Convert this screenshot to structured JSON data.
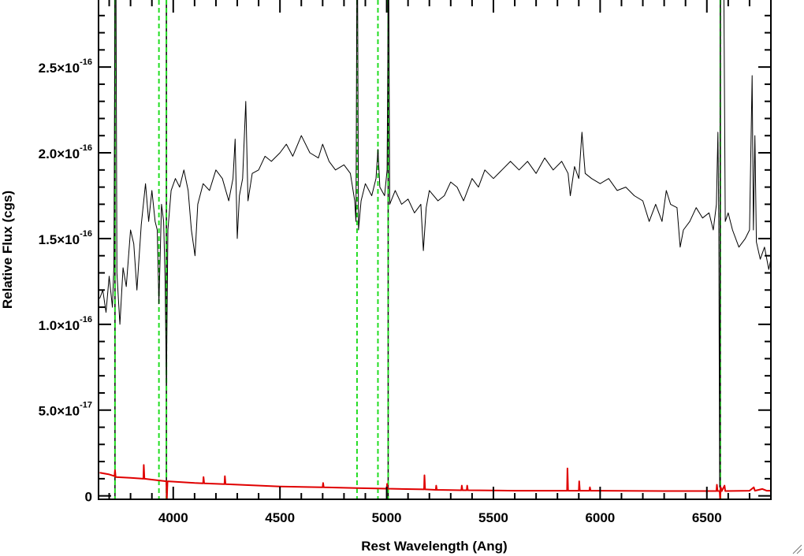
{
  "chart_data": {
    "type": "line",
    "xlabel": "Rest Wavelength (Ang)",
    "ylabel": "Relative Flux (cgs)",
    "xlim": [
      3650,
      6800
    ],
    "ylim": [
      -2e-18,
      2.9e-16
    ],
    "xticks": [
      {
        "value": 4000,
        "label": "4000"
      },
      {
        "value": 4500,
        "label": "4500"
      },
      {
        "value": 5000,
        "label": "5000"
      },
      {
        "value": 5500,
        "label": "5500"
      },
      {
        "value": 6000,
        "label": "6000"
      },
      {
        "value": 6500,
        "label": "6500"
      }
    ],
    "yticks": [
      {
        "value": 0,
        "mant": "0",
        "exp": ""
      },
      {
        "value": 5e-17,
        "mant": "5.0×10",
        "exp": "-17"
      },
      {
        "value": 1e-16,
        "mant": "1.0×10",
        "exp": "-16"
      },
      {
        "value": 1.5e-16,
        "mant": "1.5×10",
        "exp": "-16"
      },
      {
        "value": 2e-16,
        "mant": "2.0×10",
        "exp": "-16"
      },
      {
        "value": 2.5e-16,
        "mant": "2.5×10",
        "exp": "-16"
      }
    ],
    "grid": false,
    "series": [
      {
        "color": "#000000",
        "points": [
          [
            3655,
            1.15e-16
          ],
          [
            3670,
            1.2e-16
          ],
          [
            3685,
            1.07e-16
          ],
          [
            3700,
            1.28e-16
          ],
          [
            3715,
            1.1e-16
          ],
          [
            3722,
            1.34e-16
          ],
          [
            3727,
            2.9e-16
          ],
          [
            3732,
            2.9e-16
          ],
          [
            3736,
            1.3e-16
          ],
          [
            3750,
            1e-16
          ],
          [
            3765,
            1.33e-16
          ],
          [
            3780,
            1.22e-16
          ],
          [
            3800,
            1.55e-16
          ],
          [
            3815,
            1.47e-16
          ],
          [
            3830,
            1.2e-16
          ],
          [
            3850,
            1.58e-16
          ],
          [
            3870,
            1.82e-16
          ],
          [
            3885,
            1.6e-16
          ],
          [
            3900,
            1.78e-16
          ],
          [
            3915,
            1.6e-16
          ],
          [
            3925,
            1.55e-16
          ],
          [
            3933,
            1.12e-16
          ],
          [
            3945,
            1.7e-16
          ],
          [
            3955,
            1.6e-16
          ],
          [
            3962,
            1.25e-16
          ],
          [
            3968,
            6.5e-17
          ],
          [
            3975,
            1.55e-16
          ],
          [
            3990,
            1.78e-16
          ],
          [
            4010,
            1.85e-16
          ],
          [
            4030,
            1.8e-16
          ],
          [
            4050,
            1.9e-16
          ],
          [
            4070,
            1.78e-16
          ],
          [
            4085,
            1.55e-16
          ],
          [
            4102,
            1.4e-16
          ],
          [
            4115,
            1.7e-16
          ],
          [
            4140,
            1.82e-16
          ],
          [
            4170,
            1.78e-16
          ],
          [
            4200,
            1.9e-16
          ],
          [
            4230,
            1.85e-16
          ],
          [
            4260,
            1.72e-16
          ],
          [
            4280,
            1.85e-16
          ],
          [
            4290,
            2.08e-16
          ],
          [
            4300,
            1.5e-16
          ],
          [
            4310,
            1.75e-16
          ],
          [
            4325,
            1.85e-16
          ],
          [
            4340,
            2.3e-16
          ],
          [
            4350,
            1.72e-16
          ],
          [
            4370,
            1.88e-16
          ],
          [
            4400,
            1.9e-16
          ],
          [
            4430,
            1.98e-16
          ],
          [
            4460,
            1.95e-16
          ],
          [
            4500,
            2e-16
          ],
          [
            4530,
            2.05e-16
          ],
          [
            4560,
            1.98e-16
          ],
          [
            4600,
            2.1e-16
          ],
          [
            4640,
            2e-16
          ],
          [
            4680,
            1.97e-16
          ],
          [
            4700,
            2.05e-16
          ],
          [
            4730,
            1.95e-16
          ],
          [
            4760,
            1.9e-16
          ],
          [
            4800,
            1.93e-16
          ],
          [
            4830,
            1.88e-16
          ],
          [
            4850,
            1.72e-16
          ],
          [
            4856,
            1.6e-16
          ],
          [
            4860,
            2.9e-16
          ],
          [
            4864,
            2.9e-16
          ],
          [
            4868,
            1.55e-16
          ],
          [
            4880,
            1.72e-16
          ],
          [
            4900,
            1.82e-16
          ],
          [
            4930,
            1.75e-16
          ],
          [
            4950,
            1.85e-16
          ],
          [
            4959,
            2.02e-16
          ],
          [
            4968,
            1.8e-16
          ],
          [
            4990,
            1.75e-16
          ],
          [
            5002,
            1.9e-16
          ],
          [
            5007,
            2.9e-16
          ],
          [
            5010,
            2.9e-16
          ],
          [
            5014,
            1.7e-16
          ],
          [
            5040,
            1.78e-16
          ],
          [
            5070,
            1.7e-16
          ],
          [
            5100,
            1.73e-16
          ],
          [
            5130,
            1.65e-16
          ],
          [
            5160,
            1.7e-16
          ],
          [
            5172,
            1.43e-16
          ],
          [
            5185,
            1.68e-16
          ],
          [
            5200,
            1.78e-16
          ],
          [
            5240,
            1.72e-16
          ],
          [
            5270,
            1.75e-16
          ],
          [
            5300,
            1.83e-16
          ],
          [
            5330,
            1.8e-16
          ],
          [
            5360,
            1.72e-16
          ],
          [
            5400,
            1.85e-16
          ],
          [
            5430,
            1.8e-16
          ],
          [
            5460,
            1.9e-16
          ],
          [
            5500,
            1.85e-16
          ],
          [
            5540,
            1.9e-16
          ],
          [
            5580,
            1.95e-16
          ],
          [
            5620,
            1.9e-16
          ],
          [
            5660,
            1.95e-16
          ],
          [
            5700,
            1.88e-16
          ],
          [
            5740,
            1.97e-16
          ],
          [
            5780,
            1.9e-16
          ],
          [
            5820,
            1.95e-16
          ],
          [
            5850,
            1.88e-16
          ],
          [
            5860,
            1.75e-16
          ],
          [
            5880,
            1.92e-16
          ],
          [
            5900,
            1.85e-16
          ],
          [
            5915,
            2.12e-16
          ],
          [
            5930,
            1.88e-16
          ],
          [
            5960,
            1.85e-16
          ],
          [
            6000,
            1.82e-16
          ],
          [
            6040,
            1.85e-16
          ],
          [
            6080,
            1.78e-16
          ],
          [
            6120,
            1.8e-16
          ],
          [
            6160,
            1.75e-16
          ],
          [
            6200,
            1.72e-16
          ],
          [
            6230,
            1.6e-16
          ],
          [
            6260,
            1.7e-16
          ],
          [
            6290,
            1.6e-16
          ],
          [
            6310,
            1.78e-16
          ],
          [
            6330,
            1.7e-16
          ],
          [
            6360,
            1.68e-16
          ],
          [
            6375,
            1.45e-16
          ],
          [
            6390,
            1.55e-16
          ],
          [
            6420,
            1.6e-16
          ],
          [
            6450,
            1.68e-16
          ],
          [
            6480,
            1.62e-16
          ],
          [
            6510,
            1.65e-16
          ],
          [
            6530,
            1.55e-16
          ],
          [
            6545,
            1.7e-16
          ],
          [
            6552,
            2.12e-16
          ],
          [
            6556,
            1.6e-16
          ],
          [
            6560,
            5e-18
          ],
          [
            6564,
            2.9e-16
          ],
          [
            6568,
            2.9e-16
          ],
          [
            6580,
            2.9e-16
          ],
          [
            6586,
            1.6e-16
          ],
          [
            6600,
            1.65e-16
          ],
          [
            6620,
            1.55e-16
          ],
          [
            6650,
            1.45e-16
          ],
          [
            6680,
            1.5e-16
          ],
          [
            6700,
            1.55e-16
          ],
          [
            6712,
            2.45e-16
          ],
          [
            6718,
            1.55e-16
          ],
          [
            6725,
            2.1e-16
          ],
          [
            6732,
            1.48e-16
          ],
          [
            6750,
            1.38e-16
          ],
          [
            6770,
            1.45e-16
          ],
          [
            6790,
            1.32e-16
          ],
          [
            6800,
            1.38e-16
          ]
        ]
      },
      {
        "color": "#e00000",
        "points": [
          [
            3655,
            1.35e-17
          ],
          [
            3700,
            1.25e-17
          ],
          [
            3725,
            1.15e-17
          ],
          [
            3727,
            1.5e-17
          ],
          [
            3730,
            1.1e-17
          ],
          [
            3800,
            1.05e-17
          ],
          [
            3860,
            1e-17
          ],
          [
            3862,
            1.8e-17
          ],
          [
            3865,
            1e-17
          ],
          [
            3930,
            9e-18
          ],
          [
            3968,
            8.5e-18
          ],
          [
            3970,
            -2e-18
          ],
          [
            3973,
            8.5e-18
          ],
          [
            4100,
            7.5e-18
          ],
          [
            4140,
            7.3e-18
          ],
          [
            4142,
            1.1e-17
          ],
          [
            4145,
            7.3e-18
          ],
          [
            4240,
            6.8e-18
          ],
          [
            4242,
            1.15e-17
          ],
          [
            4245,
            6.8e-18
          ],
          [
            4500,
            5.5e-18
          ],
          [
            4700,
            5e-18
          ],
          [
            4702,
            7.5e-18
          ],
          [
            4705,
            5e-18
          ],
          [
            4860,
            4.5e-18
          ],
          [
            5000,
            4.2e-18
          ],
          [
            5002,
            7e-18
          ],
          [
            5005,
            4.2e-18
          ],
          [
            5175,
            3.8e-18
          ],
          [
            5177,
            1.2e-17
          ],
          [
            5180,
            3.8e-18
          ],
          [
            5230,
            3.5e-18
          ],
          [
            5232,
            6e-18
          ],
          [
            5235,
            3.5e-18
          ],
          [
            5350,
            3.3e-18
          ],
          [
            5352,
            6e-18
          ],
          [
            5355,
            3.3e-18
          ],
          [
            5375,
            3.3e-18
          ],
          [
            5377,
            6e-18
          ],
          [
            5380,
            3.3e-18
          ],
          [
            5600,
            3e-18
          ],
          [
            5845,
            3e-18
          ],
          [
            5847,
            1.6e-17
          ],
          [
            5850,
            3e-18
          ],
          [
            5900,
            3e-18
          ],
          [
            5902,
            8.5e-18
          ],
          [
            5905,
            3e-18
          ],
          [
            5950,
            3e-18
          ],
          [
            5952,
            5e-18
          ],
          [
            5955,
            3e-18
          ],
          [
            6300,
            2.8e-18
          ],
          [
            6545,
            2.8e-18
          ],
          [
            6547,
            6.5e-18
          ],
          [
            6550,
            2.8e-18
          ],
          [
            6560,
            2.8e-18
          ],
          [
            6562,
            -2e-18
          ],
          [
            6565,
            5e-18
          ],
          [
            6570,
            2.8e-18
          ],
          [
            6583,
            6e-18
          ],
          [
            6586,
            2.8e-18
          ],
          [
            6700,
            3e-18
          ],
          [
            6720,
            5e-18
          ],
          [
            6725,
            3e-18
          ],
          [
            6760,
            4e-18
          ],
          [
            6780,
            3e-18
          ],
          [
            6800,
            3e-18
          ]
        ]
      }
    ],
    "vlines": [
      {
        "x": 3727,
        "color": "#000000",
        "style": "solid"
      },
      {
        "x": 3968,
        "color": "#000000",
        "style": "solid"
      },
      {
        "x": 5007,
        "color": "#000000",
        "style": "solid"
      },
      {
        "x": 6563,
        "color": "#000000",
        "style": "solid"
      },
      {
        "x": 3727,
        "color": "#22dd22",
        "style": "dashed"
      },
      {
        "x": 3933,
        "color": "#22dd22",
        "style": "dashed"
      },
      {
        "x": 3968,
        "color": "#22dd22",
        "style": "dashed"
      },
      {
        "x": 4861,
        "color": "#22dd22",
        "style": "dashed"
      },
      {
        "x": 4959,
        "color": "#22dd22",
        "style": "dashed"
      },
      {
        "x": 5007,
        "color": "#22dd22",
        "style": "dashed"
      },
      {
        "x": 6563,
        "color": "#22dd22",
        "style": "dashed"
      }
    ]
  }
}
